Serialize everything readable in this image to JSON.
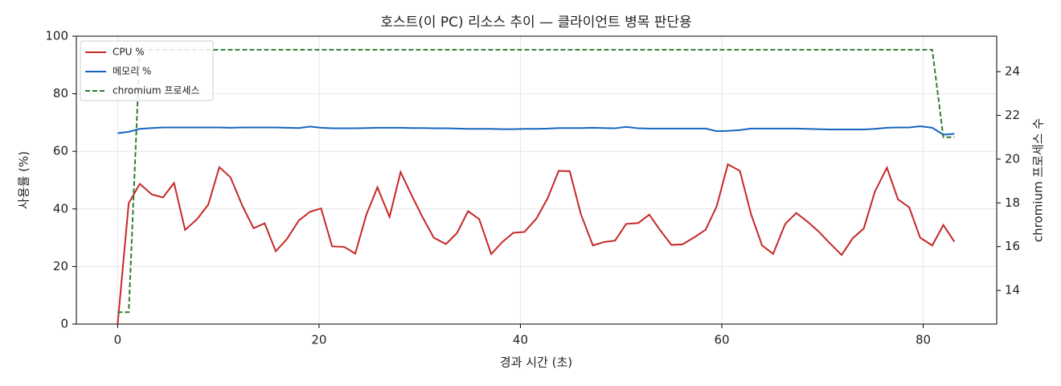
{
  "chart_data": {
    "type": "line",
    "title": "호스트(이 PC) 리소스 추이 — 클라이언트 병목 판단용",
    "xlabel": "경과 시간 (초)",
    "ylabel": "사용률 (%)",
    "y2label": "chromium 프로세스 수",
    "x": [
      0,
      1.1,
      2.2,
      3.4,
      4.5,
      5.6,
      6.7,
      7.9,
      9.0,
      10.1,
      11.2,
      12.4,
      13.5,
      14.6,
      15.7,
      16.8,
      18.0,
      19.1,
      20.2,
      21.3,
      22.5,
      23.6,
      24.7,
      25.8,
      27.0,
      28.1,
      29.2,
      30.3,
      31.4,
      32.6,
      33.7,
      34.8,
      35.9,
      37.1,
      38.2,
      39.3,
      40.4,
      41.6,
      42.7,
      43.8,
      44.9,
      46.0,
      47.2,
      48.3,
      49.4,
      50.5,
      51.7,
      52.8,
      53.9,
      55.0,
      56.1,
      57.3,
      58.4,
      59.5,
      60.6,
      61.8,
      62.9,
      64.0,
      65.1,
      66.3,
      67.4,
      68.5,
      69.6,
      70.7,
      71.9,
      73.0,
      74.1,
      75.2,
      76.4,
      77.5,
      78.6,
      79.7,
      80.9,
      82.0,
      83.1
    ],
    "series": [
      {
        "name": "CPU %",
        "color": "#c62828",
        "linestyle": "solid",
        "axis": "y",
        "values": [
          0,
          42,
          48.7,
          45,
          44,
          49,
          32.7,
          36.5,
          41.5,
          54.5,
          51,
          41,
          33.3,
          35,
          25.3,
          29.5,
          36,
          39,
          40.2,
          27,
          26.8,
          24.5,
          38,
          47.5,
          37.2,
          52.8,
          44.7,
          37,
          30,
          27.8,
          31.6,
          39.2,
          36.5,
          24.3,
          28.5,
          31.7,
          32,
          36.7,
          43.7,
          53.2,
          53.1,
          38.2,
          27.3,
          28.5,
          29,
          34.8,
          35.1,
          38,
          32.5,
          27.5,
          27.7,
          30.2,
          32.8,
          41,
          55.5,
          53.2,
          38.2,
          27.3,
          24.4,
          34.8,
          38.6,
          35.6,
          32.2,
          28.2,
          24,
          29.8,
          33.2,
          46,
          54.3,
          43.3,
          40.6,
          30,
          27.3,
          34.4,
          28.6
        ]
      },
      {
        "name": "메모리 %",
        "color": "#1565c0",
        "linestyle": "solid",
        "axis": "y",
        "values": [
          66.3,
          66.8,
          67.8,
          68.1,
          68.3,
          68.3,
          68.3,
          68.3,
          68.3,
          68.3,
          68.2,
          68.3,
          68.3,
          68.3,
          68.3,
          68.2,
          68.1,
          68.6,
          68.2,
          68.0,
          68.0,
          68.0,
          68.1,
          68.2,
          68.2,
          68.2,
          68.1,
          68.1,
          68.0,
          68.0,
          67.9,
          67.8,
          67.8,
          67.8,
          67.7,
          67.7,
          67.8,
          67.8,
          67.9,
          68.1,
          68.1,
          68.1,
          68.2,
          68.1,
          68.0,
          68.5,
          68.0,
          67.9,
          67.9,
          67.9,
          67.9,
          67.9,
          67.9,
          67.0,
          67.1,
          67.4,
          67.9,
          67.9,
          67.9,
          67.9,
          67.9,
          67.8,
          67.7,
          67.6,
          67.6,
          67.6,
          67.6,
          67.8,
          68.2,
          68.3,
          68.3,
          68.7,
          68.2,
          65.8,
          66.1
        ]
      },
      {
        "name": "chromium 프로세스",
        "color": "#2e7d32",
        "linestyle": "dashed",
        "axis": "y2",
        "values": [
          13,
          13,
          25,
          25,
          25,
          25,
          25,
          25,
          25,
          25,
          25,
          25,
          25,
          25,
          25,
          25,
          25,
          25,
          25,
          25,
          25,
          25,
          25,
          25,
          25,
          25,
          25,
          25,
          25,
          25,
          25,
          25,
          25,
          25,
          25,
          25,
          25,
          25,
          25,
          25,
          25,
          25,
          25,
          25,
          25,
          25,
          25,
          25,
          25,
          25,
          25,
          25,
          25,
          25,
          25,
          25,
          25,
          25,
          25,
          25,
          25,
          25,
          25,
          25,
          25,
          25,
          25,
          25,
          25,
          25,
          25,
          25,
          25,
          21,
          21
        ]
      }
    ],
    "xlim": [
      -4.1,
      87.3
    ],
    "xticks": [
      0,
      20,
      40,
      60,
      80
    ],
    "ylim": [
      0,
      100
    ],
    "yticks": [
      0,
      20,
      40,
      60,
      80,
      100
    ],
    "y2lim": [
      12.46,
      25.62
    ],
    "y2ticks": [
      14,
      16,
      18,
      20,
      22,
      24
    ],
    "grid": true,
    "legend": "upper left"
  }
}
